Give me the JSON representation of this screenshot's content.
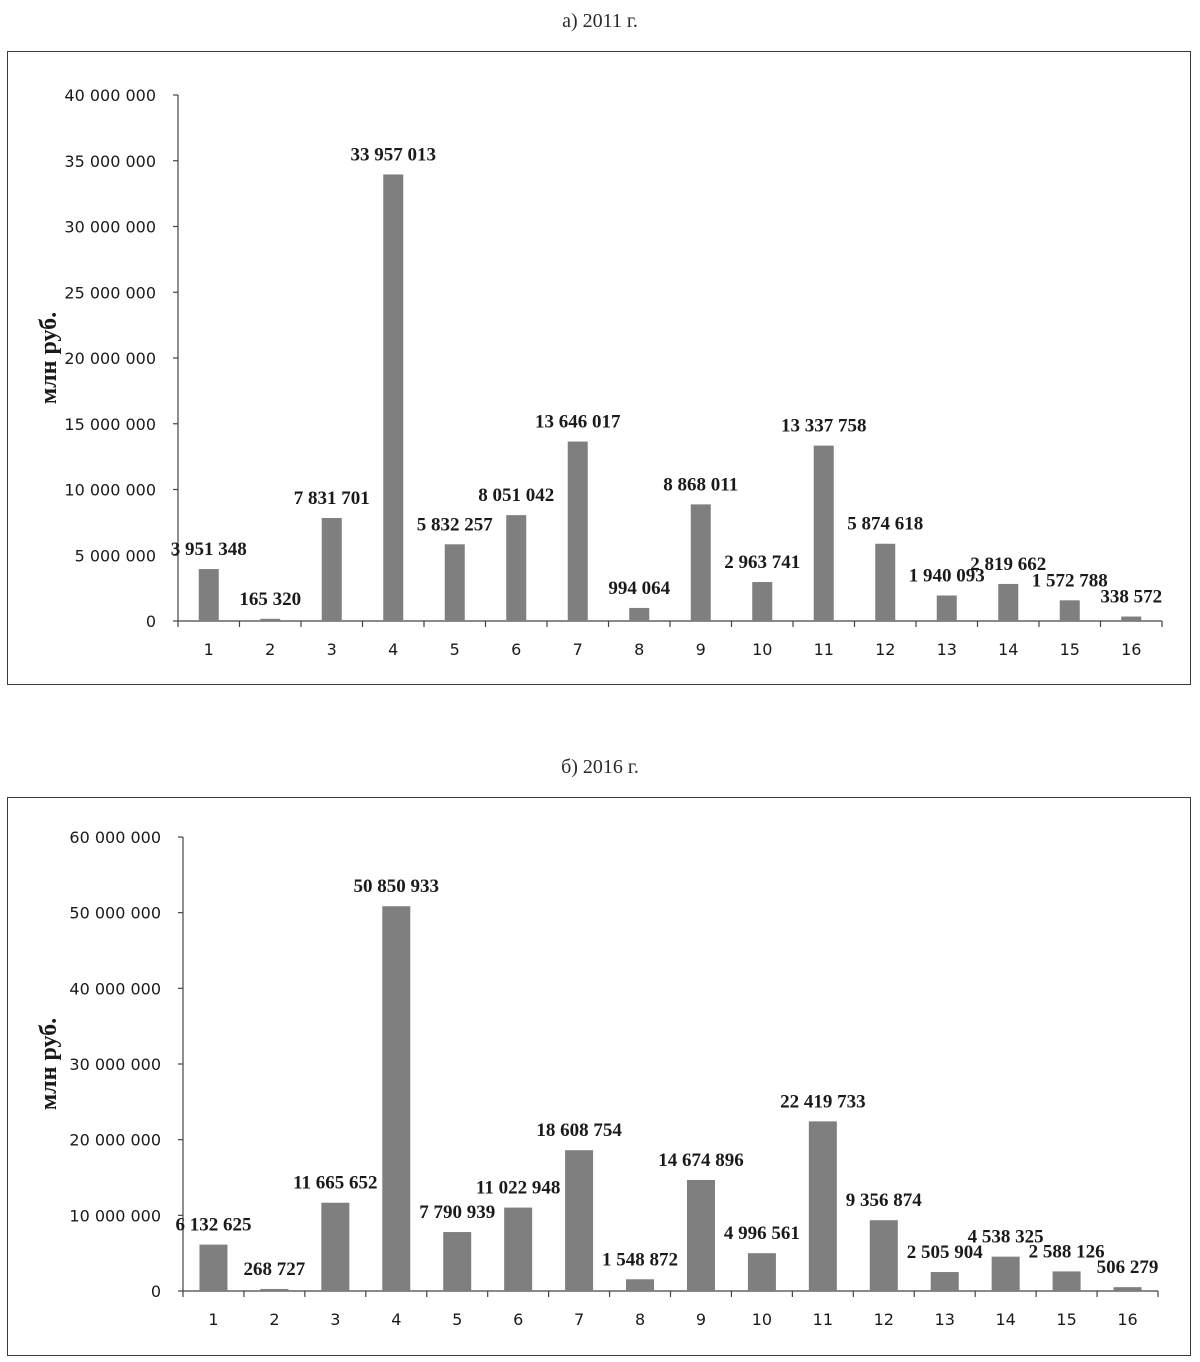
{
  "chart_data": [
    {
      "type": "bar",
      "title": "а) 2011 г.",
      "ylabel": "млн руб.",
      "xlabel": "",
      "categories": [
        "1",
        "2",
        "3",
        "4",
        "5",
        "6",
        "7",
        "8",
        "9",
        "10",
        "11",
        "12",
        "13",
        "14",
        "15",
        "16"
      ],
      "values": [
        3951348,
        165320,
        7831701,
        33957013,
        5832257,
        8051042,
        13646017,
        994064,
        8868011,
        2963741,
        13337758,
        5874618,
        1940093,
        2819662,
        1572788,
        338572
      ],
      "value_labels": [
        "3 951 348",
        "165 320",
        "7 831 701",
        "33 957 013",
        "5 832 257",
        "8 051 042",
        "13 646 017",
        "994 064",
        "8 868 011",
        "2 963 741",
        "13 337 758",
        "5 874 618",
        "1 940 093",
        "2 819 662",
        "1 572 788",
        "338 572"
      ],
      "ylim": [
        0,
        40000000
      ],
      "yticks": [
        0,
        5000000,
        10000000,
        15000000,
        20000000,
        25000000,
        30000000,
        35000000,
        40000000
      ],
      "ytick_labels": [
        "0",
        "5 000 000",
        "10 000 000",
        "15 000 000",
        "20 000 000",
        "25 000 000",
        "30 000 000",
        "35 000 000",
        "40 000 000"
      ],
      "grid": false,
      "legend": "none",
      "bar_color": "#7f7f7f"
    },
    {
      "type": "bar",
      "title": "б) 2016 г.",
      "ylabel": "млн руб.",
      "xlabel": "",
      "categories": [
        "1",
        "2",
        "3",
        "4",
        "5",
        "6",
        "7",
        "8",
        "9",
        "10",
        "11",
        "12",
        "13",
        "14",
        "15",
        "16"
      ],
      "values": [
        6132625,
        268727,
        11665652,
        50850933,
        7790939,
        11022948,
        18608754,
        1548872,
        14674896,
        4996561,
        22419733,
        9356874,
        2505904,
        4538325,
        2588126,
        506279
      ],
      "value_labels": [
        "6 132 625",
        "268 727",
        "11 665 652",
        "50 850 933",
        "7 790 939",
        "11 022 948",
        "18 608 754",
        "1 548 872",
        "14 674 896",
        "4 996 561",
        "22 419 733",
        "9 356 874",
        "2 505 904",
        "4 538 325",
        "2 588 126",
        "506 279"
      ],
      "ylim": [
        0,
        60000000
      ],
      "yticks": [
        0,
        10000000,
        20000000,
        30000000,
        40000000,
        50000000,
        60000000
      ],
      "ytick_labels": [
        "0",
        "10 000 000",
        "20 000 000",
        "30 000 000",
        "40 000 000",
        "50 000 000",
        "60 000 000"
      ],
      "grid": false,
      "legend": "none",
      "bar_color": "#7f7f7f"
    }
  ]
}
